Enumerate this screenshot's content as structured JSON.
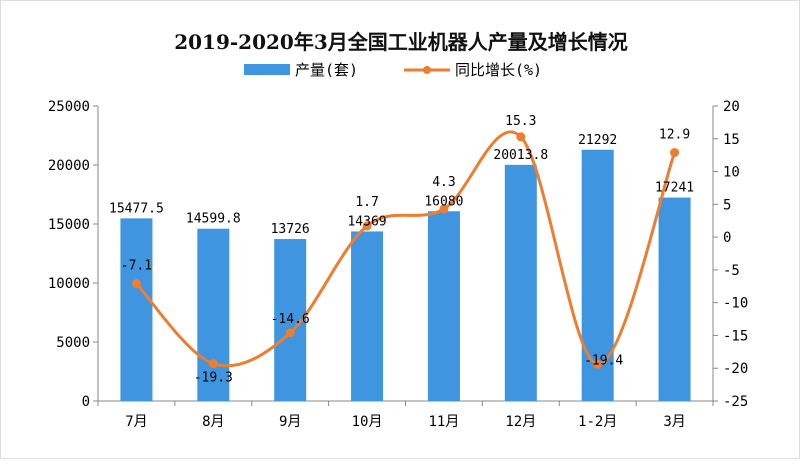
{
  "chart_data": {
    "type": "bar+line",
    "title": "2019-2020年3月全国工业机器人产量及增长情况",
    "categories": [
      "7月",
      "8月",
      "9月",
      "10月",
      "11月",
      "12月",
      "1-2月",
      "3月"
    ],
    "series": [
      {
        "name": "产量(套)",
        "type": "bar",
        "axis": "left",
        "color": "#3f95e0",
        "values": [
          15477.5,
          14599.8,
          13726,
          14369,
          16080,
          20013.8,
          21292,
          17241
        ],
        "labels": [
          "15477.5",
          "14599.8",
          "13726",
          "14369",
          "16080",
          "20013.8",
          "21292",
          "17241"
        ]
      },
      {
        "name": "同比增长(%)",
        "type": "line",
        "axis": "right",
        "color": "#ed7d31",
        "values": [
          -7.1,
          -19.3,
          -14.6,
          1.7,
          4.3,
          15.3,
          -19.4,
          12.9
        ],
        "labels": [
          "-7.1",
          "-19.3",
          "-14.6",
          "1.7",
          "4.3",
          "15.3",
          "-19.4",
          "12.9"
        ]
      }
    ],
    "y_left": {
      "range": [
        0,
        25000
      ],
      "ticks": [
        "0",
        "5000",
        "10000",
        "15000",
        "20000",
        "25000"
      ]
    },
    "y_right": {
      "range": [
        -25,
        20
      ],
      "ticks": [
        "-25",
        "-20",
        "-15",
        "-10",
        "-5",
        "0",
        "5",
        "10",
        "15",
        "20"
      ]
    },
    "legend_position": "top-center",
    "grid": false
  }
}
